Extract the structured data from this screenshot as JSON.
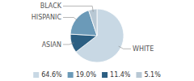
{
  "chart_data": {
    "type": "pie",
    "categories": [
      "WHITE",
      "ASIAN",
      "HISPANIC",
      "BLACK"
    ],
    "values": [
      64.6,
      11.4,
      19.0,
      5.1
    ],
    "value_labels": [
      "64.6%",
      "11.4%",
      "19.0%",
      "5.1%"
    ],
    "colors": [
      "#c8d8e4",
      "#2c5f82",
      "#6b9ab8",
      "#b8c8d4"
    ],
    "legend": "bottom"
  }
}
